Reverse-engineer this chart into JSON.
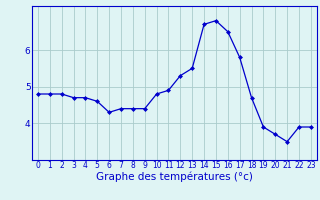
{
  "hours": [
    0,
    1,
    2,
    3,
    4,
    5,
    6,
    7,
    8,
    9,
    10,
    11,
    12,
    13,
    14,
    15,
    16,
    17,
    18,
    19,
    20,
    21,
    22,
    23
  ],
  "temperatures": [
    4.8,
    4.8,
    4.8,
    4.7,
    4.7,
    4.6,
    4.3,
    4.4,
    4.4,
    4.4,
    4.8,
    4.9,
    5.3,
    5.5,
    6.7,
    6.8,
    6.5,
    5.8,
    4.7,
    3.9,
    3.7,
    3.5,
    3.9,
    3.9
  ],
  "xlabel": "Graphe des températures (°c)",
  "ylim": [
    3.0,
    7.2
  ],
  "yticks": [
    4,
    5,
    6
  ],
  "xticks": [
    0,
    1,
    2,
    3,
    4,
    5,
    6,
    7,
    8,
    9,
    10,
    11,
    12,
    13,
    14,
    15,
    16,
    17,
    18,
    19,
    20,
    21,
    22,
    23
  ],
  "line_color": "#0000cc",
  "marker": "D",
  "marker_size": 2.0,
  "background_color": "#dff4f4",
  "grid_color": "#aacccc",
  "tick_label_fontsize": 5.5,
  "xlabel_fontsize": 7.5
}
